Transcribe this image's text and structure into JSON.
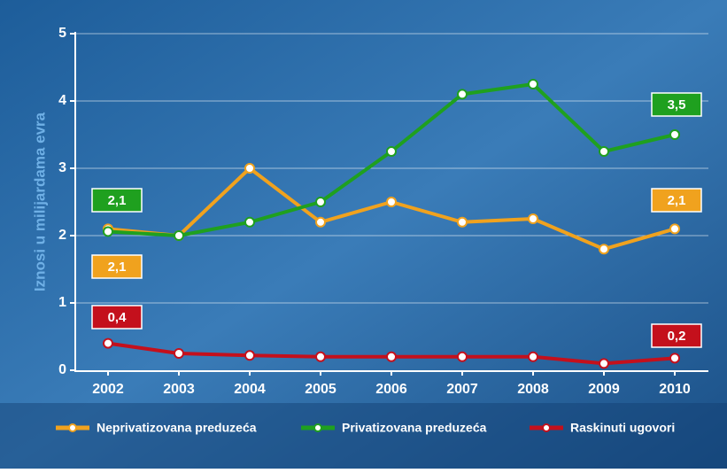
{
  "chart_data": {
    "type": "line",
    "y_label": "Iznosi u milijardama evra",
    "categories": [
      "2002",
      "2003",
      "2004",
      "2005",
      "2006",
      "2007",
      "2008",
      "2009",
      "2010"
    ],
    "ylim": [
      0,
      5
    ],
    "yticks": [
      0,
      1,
      2,
      3,
      4,
      5
    ],
    "grid": true,
    "legend": "bottom",
    "series": [
      {
        "name": "Neprivatizovana preduzeća",
        "color": "#f0a21e",
        "values": [
          2.1,
          2.0,
          3.0,
          2.2,
          2.5,
          2.2,
          2.25,
          1.8,
          2.1
        ],
        "value_labels": [
          "2,1",
          null,
          null,
          null,
          null,
          null,
          null,
          null,
          "2,1"
        ]
      },
      {
        "name": "Privatizovana preduzeća",
        "color": "#1fa01f",
        "values": [
          2.06,
          2.0,
          2.2,
          2.5,
          3.25,
          4.1,
          4.25,
          3.25,
          3.5
        ],
        "value_labels": [
          "2,1",
          null,
          null,
          null,
          null,
          null,
          null,
          null,
          "3,5"
        ]
      },
      {
        "name": "Raskinuti ugovori",
        "color": "#c4101c",
        "values": [
          0.4,
          0.25,
          0.22,
          0.2,
          0.2,
          0.2,
          0.2,
          0.1,
          0.18
        ],
        "value_labels": [
          "0,4",
          null,
          null,
          null,
          null,
          null,
          null,
          null,
          "0,2"
        ]
      }
    ]
  }
}
